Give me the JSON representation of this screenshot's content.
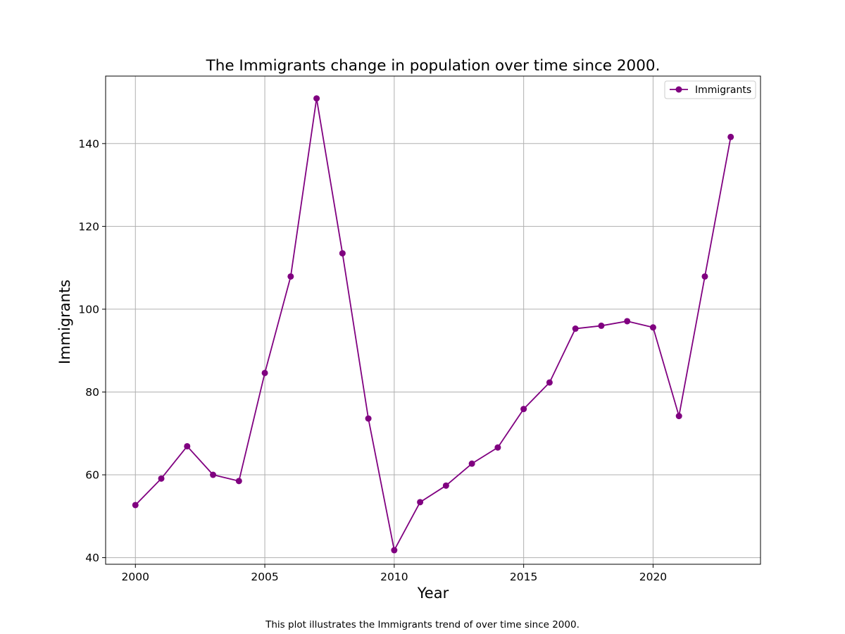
{
  "chart_data": {
    "type": "line",
    "title": "The  Immigrants change in population  over time since 2000.",
    "xlabel": "Year",
    "ylabel": "Immigrants",
    "caption": "This plot illustrates the  Immigrants trend of  over time since 2000.",
    "xlim": [
      1998.85,
      2024.15
    ],
    "ylim": [
      38.4,
      156.3
    ],
    "xticks": [
      2000,
      2005,
      2010,
      2015,
      2020
    ],
    "yticks": [
      40,
      60,
      80,
      100,
      120,
      140
    ],
    "grid": true,
    "legend_position": "top-right",
    "x": [
      2000,
      2001,
      2002,
      2003,
      2004,
      2005,
      2006,
      2007,
      2008,
      2009,
      2010,
      2011,
      2012,
      2013,
      2014,
      2015,
      2016,
      2017,
      2018,
      2019,
      2020,
      2021,
      2022,
      2023
    ],
    "series": [
      {
        "name": "Immigrants",
        "color": "#800080",
        "marker": "circle",
        "values": [
          52.7,
          59.1,
          66.9,
          60.0,
          58.5,
          84.6,
          107.9,
          150.9,
          113.5,
          73.6,
          41.8,
          53.4,
          57.4,
          62.7,
          66.6,
          75.9,
          82.3,
          95.3,
          96.0,
          97.1,
          95.6,
          74.2,
          107.9,
          141.6
        ]
      }
    ]
  }
}
